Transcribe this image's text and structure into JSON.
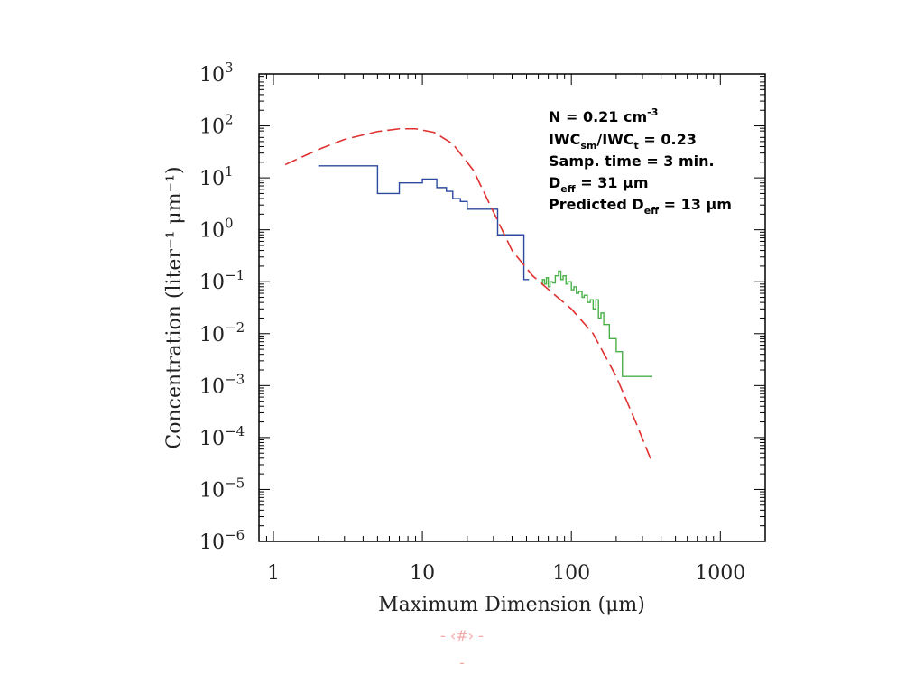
{
  "chart_data": {
    "type": "line",
    "xscale": "log",
    "yscale": "log",
    "xlim": [
      0.8,
      2000
    ],
    "ylim": [
      1e-06,
      1000
    ],
    "xlabel": "Maximum Dimension (μm)",
    "ylabel": "Concentration (liter⁻¹ μm⁻¹)",
    "x_ticks": [
      {
        "value": 1,
        "label": "1"
      },
      {
        "value": 10,
        "label": "10"
      },
      {
        "value": 100,
        "label": "100"
      },
      {
        "value": 1000,
        "label": "1000"
      }
    ],
    "y_ticks": [
      {
        "value": 1000,
        "label": "10",
        "exp": "3"
      },
      {
        "value": 100,
        "label": "10",
        "exp": "2"
      },
      {
        "value": 10,
        "label": "10",
        "exp": "1"
      },
      {
        "value": 1,
        "label": "10",
        "exp": "0"
      },
      {
        "value": 0.1,
        "label": "10",
        "exp": "−1"
      },
      {
        "value": 0.01,
        "label": "10",
        "exp": "−2"
      },
      {
        "value": 0.001,
        "label": "10",
        "exp": "−3"
      },
      {
        "value": 0.0001,
        "label": "10",
        "exp": "−4"
      },
      {
        "value": 1e-05,
        "label": "10",
        "exp": "−5"
      },
      {
        "value": 1e-06,
        "label": "10",
        "exp": "−6"
      }
    ],
    "series": [
      {
        "color": "#2b4a9e",
        "style": "step",
        "x": [
          2,
          4,
          5,
          6.2,
          7,
          8,
          9,
          10,
          11,
          12.5,
          13,
          14.5,
          16,
          18,
          20,
          25,
          32,
          40,
          47,
          48,
          52
        ],
        "y": [
          17,
          17,
          5,
          5,
          8,
          8,
          8,
          9.5,
          9.5,
          6.5,
          6.5,
          5.5,
          4,
          3.5,
          2.5,
          2.5,
          0.8,
          0.8,
          0.8,
          0.11,
          0.11
        ]
      },
      {
        "color": "#4ab04a",
        "style": "step",
        "x": [
          62,
          64,
          66,
          68,
          70,
          72,
          75,
          78,
          82,
          85,
          88,
          92,
          95,
          100,
          104,
          108,
          112,
          118,
          122,
          128,
          134,
          140,
          146,
          152,
          158,
          165,
          180,
          200,
          220,
          350
        ],
        "y": [
          0.09,
          0.11,
          0.09,
          0.12,
          0.08,
          0.1,
          0.095,
          0.13,
          0.16,
          0.11,
          0.13,
          0.09,
          0.1,
          0.07,
          0.08,
          0.06,
          0.065,
          0.05,
          0.055,
          0.04,
          0.045,
          0.03,
          0.045,
          0.02,
          0.025,
          0.015,
          0.008,
          0.0045,
          0.0015,
          0.0015
        ]
      },
      {
        "color": "#e03030",
        "style": "dashed",
        "x": [
          1.2,
          2,
          3,
          5,
          7,
          9,
          12,
          16,
          22,
          30,
          40,
          55,
          75,
          100,
          140,
          200,
          270,
          350
        ],
        "y": [
          18,
          35,
          55,
          78,
          88,
          88,
          75,
          45,
          14,
          2.2,
          0.4,
          0.13,
          0.06,
          0.03,
          0.01,
          0.0015,
          0.0002,
          3.2e-05
        ]
      }
    ]
  },
  "annotations": {
    "n_text": "N = 0.21 cm",
    "n_sup": "-3",
    "iwc_a": "IWC",
    "iwc_a_sub": "sm",
    "iwc_mid": "/IWC",
    "iwc_b_sub": "t",
    "iwc_val": " = 0.23",
    "samp": "Samp. time = 3 min.",
    "deff_a": "D",
    "deff_sub": "eff",
    "deff_val": " = 31 μm",
    "pred_a": "Predicted D",
    "pred_sub": "eff",
    "pred_val": " = 13 μm"
  },
  "footer": {
    "slide_number": "- ‹#› -",
    "dash": "-"
  }
}
